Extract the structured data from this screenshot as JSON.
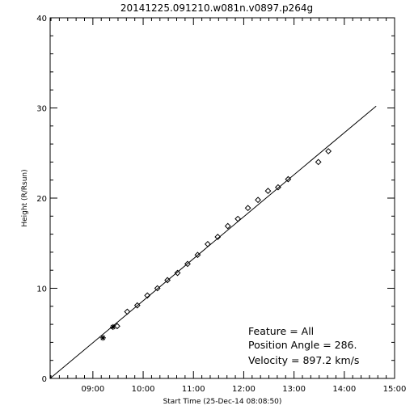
{
  "chart_data": {
    "type": "scatter",
    "title": "20141225.091210.w081n.v0897.p264g",
    "xlabel": "Start Time (25-Dec-14 08:08:50)",
    "ylabel": "Height (R/Rsun)",
    "xlim": [
      "08:09",
      "15:00"
    ],
    "ylim": [
      0,
      40
    ],
    "x_ticks": [
      "09:00",
      "10:00",
      "11:00",
      "12:00",
      "13:00",
      "14:00",
      "15:00"
    ],
    "y_ticks": [
      "0",
      "10",
      "20",
      "30",
      "40"
    ],
    "grid": false,
    "series": [
      {
        "marker": "asterisk",
        "points": [
          {
            "x": "09:12",
            "y": 4.5
          },
          {
            "x": "09:24",
            "y": 5.7
          }
        ]
      },
      {
        "marker": "diamond",
        "points": [
          {
            "x": "09:29",
            "y": 5.8
          },
          {
            "x": "09:41",
            "y": 7.4
          },
          {
            "x": "09:53",
            "y": 8.1
          },
          {
            "x": "10:05",
            "y": 9.2
          },
          {
            "x": "10:17",
            "y": 10.0
          },
          {
            "x": "10:29",
            "y": 10.9
          },
          {
            "x": "10:41",
            "y": 11.7
          },
          {
            "x": "10:53",
            "y": 12.7
          },
          {
            "x": "11:05",
            "y": 13.7
          },
          {
            "x": "11:17",
            "y": 14.9
          },
          {
            "x": "11:29",
            "y": 15.7
          },
          {
            "x": "11:41",
            "y": 16.9
          },
          {
            "x": "11:53",
            "y": 17.7
          },
          {
            "x": "12:05",
            "y": 18.9
          },
          {
            "x": "12:17",
            "y": 19.8
          },
          {
            "x": "12:29",
            "y": 20.8
          },
          {
            "x": "12:41",
            "y": 21.2
          },
          {
            "x": "12:53",
            "y": 22.1
          },
          {
            "x": "13:29",
            "y": 24.0
          },
          {
            "x": "13:41",
            "y": 25.2
          }
        ]
      }
    ],
    "fit_line": [
      {
        "x": "08:09",
        "y": 0
      },
      {
        "x": "14:38",
        "y": 30.2
      }
    ]
  },
  "legend": {
    "feature": "Feature = All",
    "position_angle": "Position Angle =  286.",
    "velocity": "Velocity =  897.2 km/s"
  }
}
